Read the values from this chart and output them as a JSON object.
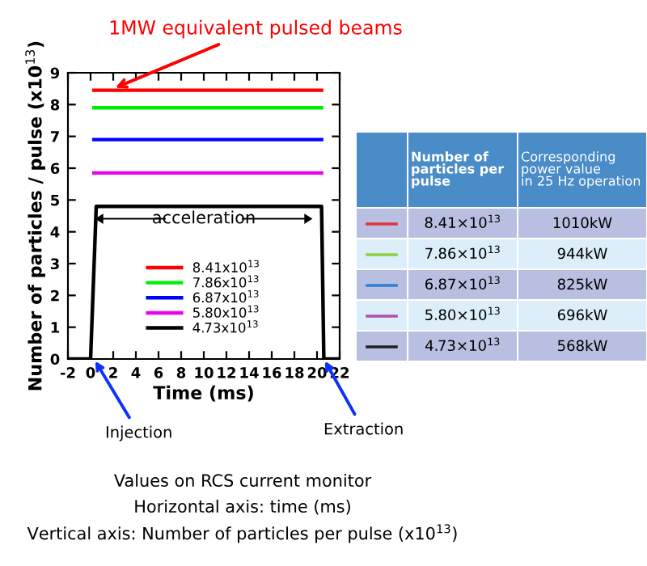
{
  "chart_data": [
    {
      "type": "line",
      "xlabel": "Time (ms)",
      "ylabel": "Number of particles / pulse (x10$^{13}$)",
      "xlim": [
        -2,
        22
      ],
      "ylim": [
        0,
        9
      ],
      "xticks": [
        -2,
        0,
        2,
        4,
        6,
        8,
        10,
        12,
        14,
        16,
        18,
        20,
        22
      ],
      "yticks": [
        0,
        1,
        2,
        3,
        4,
        5,
        6,
        7,
        8,
        9
      ],
      "grid": false,
      "legend": "bottom",
      "marker": "none",
      "line_style": "solid",
      "series": [
        {
          "name": "8.41x10$^{13}$",
          "color": "#ff0000",
          "x": [
            0.3,
            20.4
          ],
          "values": [
            8.45,
            8.45
          ]
        },
        {
          "name": "7.86x10$^{13}$",
          "color": "#00ee00",
          "x": [
            0.3,
            20.4
          ],
          "values": [
            7.9,
            7.9
          ]
        },
        {
          "name": "6.87x10$^{13}$",
          "color": "#0000ff",
          "x": [
            0.3,
            20.4
          ],
          "values": [
            6.9,
            6.9
          ]
        },
        {
          "name": "5.80x10$^{13}$",
          "color": "#ee00ee",
          "x": [
            0.3,
            20.4
          ],
          "values": [
            5.85,
            5.85
          ]
        },
        {
          "name": "4.73x10$^{13}$",
          "color": "#000000",
          "x": [
            -2,
            0,
            0.5,
            20.4,
            20.6,
            22
          ],
          "values": [
            0,
            0,
            4.8,
            4.8,
            0,
            0
          ]
        }
      ],
      "annotations": [
        {
          "text": "1MW equivalent pulsed beams",
          "x": 2,
          "y": 8.5
        },
        {
          "text": "Injection",
          "x": 0.3,
          "y": 0
        },
        {
          "text": "Extraction",
          "x": 20.6,
          "y": 0
        },
        "acceleration",
        "Values on RCS current monitor",
        "Horizontal axis: time (ms)",
        "Vertical axis: Number of particles per pulse (x10$^{13}$)"
      ]
    },
    {
      "type": "other",
      "colors": [
        "#e8303a",
        "#8cd040",
        "#2f7fd8",
        "#b050b0",
        "#202020"
      ],
      "annotations": [
        "Number of\nparticles per\npulse",
        "Corresponding\npower value\nin 25 Hz operation",
        "8.41×10$^{13}$",
        "1010kW",
        "7.86×10$^{13}$",
        "944kW",
        "6.87×10$^{13}$",
        "825kW",
        "5.80×10$^{13}$",
        "696kW",
        "4.73×10$^{13}$",
        "568kW"
      ]
    }
  ]
}
